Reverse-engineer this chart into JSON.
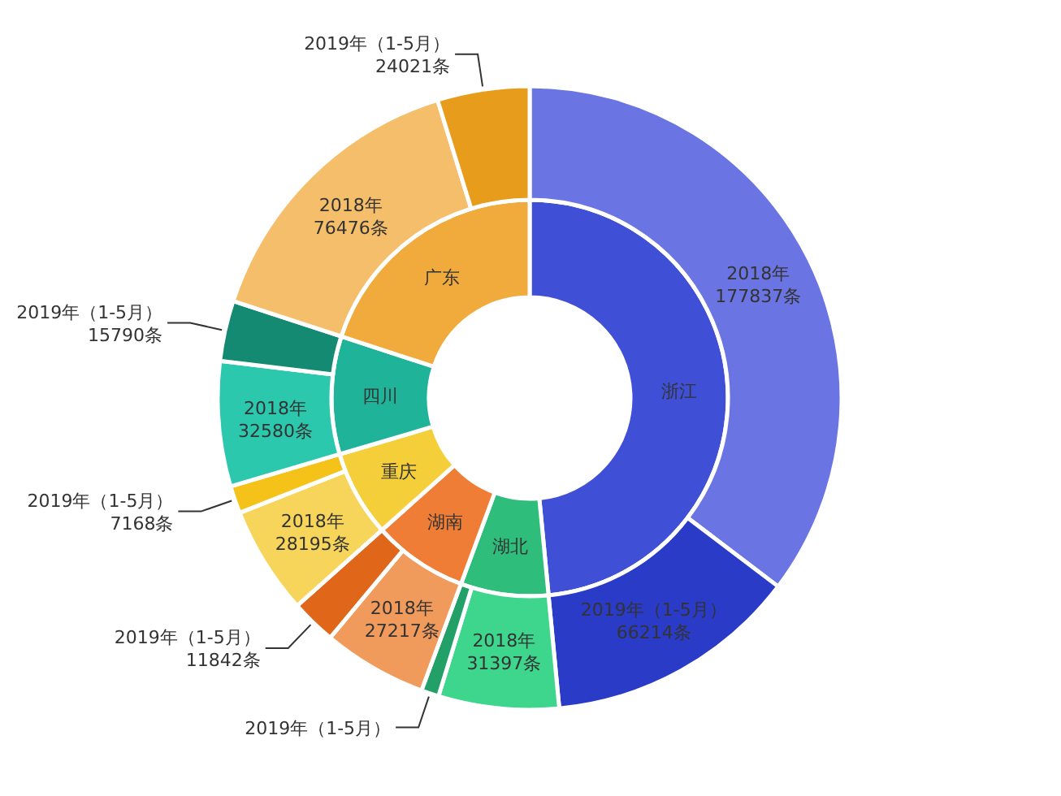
{
  "chart_data": [
    {
      "type": "donut",
      "categories": [
        "浙江",
        "湖北",
        "湖南",
        "重庆",
        "四川",
        "广东"
      ],
      "values": [
        48.48,
        7.15,
        7.76,
        7.03,
        9.61,
        19.97
      ],
      "colors": [
        "#3f4fd6",
        "#2ebd7a",
        "#ef7d36",
        "#f5cf3a",
        "#1fb39a",
        "#f0ab3c"
      ]
    },
    {
      "type": "donut",
      "categories": [
        "2018年",
        "2019年（1-5月）",
        "2018年",
        "2019年（1-5月）",
        "2018年",
        "2019年（1-5月）",
        "2018年",
        "2019年（1-5月）",
        "2018年",
        "2019年（1-5月）",
        "2018年",
        "2019年（1-5月）"
      ],
      "values": [
        177837,
        66214,
        31397,
        4600,
        27217,
        11842,
        28195,
        7168,
        32580,
        15790,
        76476,
        24021
      ],
      "colors": [
        "#6a74e2",
        "#2a3bc8",
        "#3dd68c",
        "#22a068",
        "#f09a5c",
        "#e0661a",
        "#f7d55a",
        "#f5c21a",
        "#2cc8ad",
        "#158a72",
        "#f5be6a",
        "#e89c1c"
      ],
      "value_labels": [
        "177837条",
        "66214条",
        "31397条",
        null,
        "27217条",
        "11842条",
        "28195条",
        "7168条",
        "32580条",
        "15790条",
        "76476条",
        "24021条"
      ]
    }
  ]
}
